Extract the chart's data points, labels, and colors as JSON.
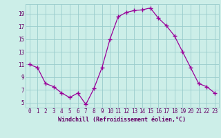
{
  "x": [
    0,
    1,
    2,
    3,
    4,
    5,
    6,
    7,
    8,
    9,
    10,
    11,
    12,
    13,
    14,
    15,
    16,
    17,
    18,
    19,
    20,
    21,
    22,
    23
  ],
  "y": [
    11,
    10.5,
    8,
    7.5,
    6.5,
    5.8,
    6.5,
    4.7,
    7.2,
    10.5,
    15,
    18.5,
    19.2,
    19.5,
    19.6,
    19.9,
    18.3,
    17.1,
    15.5,
    13,
    10.5,
    8,
    7.5,
    6.5
  ],
  "line_color": "#990099",
  "marker": "+",
  "marker_size": 4,
  "marker_edge_width": 1.0,
  "line_width": 0.9,
  "bg_color": "#cceee8",
  "grid_color": "#99cccc",
  "xlabel": "Windchill (Refroidissement éolien,°C)",
  "xlabel_color": "#660066",
  "tick_color": "#660066",
  "xlim": [
    -0.5,
    23.5
  ],
  "ylim": [
    4.2,
    20.5
  ],
  "yticks": [
    5,
    7,
    9,
    11,
    13,
    15,
    17,
    19
  ],
  "xticks": [
    0,
    1,
    2,
    3,
    4,
    5,
    6,
    7,
    8,
    9,
    10,
    11,
    12,
    13,
    14,
    15,
    16,
    17,
    18,
    19,
    20,
    21,
    22,
    23
  ],
  "xtick_labels": [
    "0",
    "1",
    "2",
    "3",
    "4",
    "5",
    "6",
    "7",
    "8",
    "9",
    "10",
    "11",
    "12",
    "13",
    "14",
    "15",
    "16",
    "17",
    "18",
    "19",
    "20",
    "21",
    "22",
    "23"
  ],
  "tick_fontsize": 5.5,
  "xlabel_fontsize": 6.0,
  "xlabel_fontweight": "bold"
}
